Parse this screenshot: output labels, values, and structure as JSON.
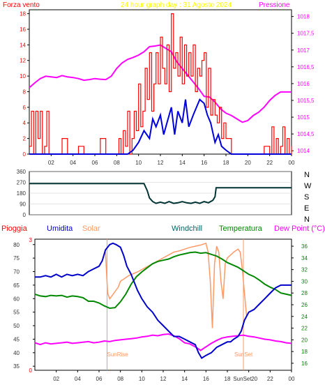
{
  "colors": {
    "wind": "#ff0000",
    "gust_avg": "#0000dd",
    "pressure": "#ff00ff",
    "title": "#ffff00",
    "direction": "#003333",
    "humidity": "#0000cc",
    "solar": "#ff9966",
    "temperature": "#008800",
    "dew_point": "#ff00ff",
    "windchill": "#006666",
    "rain": "#ff0000",
    "grid": "#cccccc",
    "axis": "#000000",
    "tick_text": "#333333"
  },
  "chart_data": [
    {
      "type": "line",
      "title": "24 hour graph day : 31 Agosto 2024",
      "ylabel_left": "Forza vento",
      "ylabel_right": "Pressione",
      "x_ticks": [
        "02",
        "04",
        "06",
        "08",
        "10",
        "12",
        "14",
        "16",
        "18",
        "20",
        "22",
        "00"
      ],
      "y_left_ticks": [
        "0",
        "2",
        "4",
        "6",
        "8",
        "10",
        "12",
        "14",
        "16",
        "18"
      ],
      "y_right_ticks": [
        "1014",
        "1014,5",
        "1015",
        "1015,5",
        "1016",
        "1016,5",
        "1017",
        "1017,5",
        "1018"
      ],
      "ylim_left": [
        0,
        18.5
      ],
      "ylim_right": [
        1013.9,
        1018.2
      ],
      "xlim_hours": [
        0,
        24
      ],
      "series": [
        {
          "key": "pressure",
          "color": "#ff00ff",
          "axis": "right",
          "x": [
            0,
            0.5,
            1,
            1.5,
            2,
            2.5,
            3,
            3.5,
            4,
            4.5,
            5,
            5.5,
            6,
            6.5,
            7,
            7.5,
            8,
            8.5,
            9,
            9.5,
            10,
            10.5,
            11,
            11.5,
            12,
            12.5,
            13,
            13.5,
            14,
            14.5,
            15,
            15.5,
            16,
            16.5,
            17,
            17.5,
            18,
            18.5,
            19,
            19.5,
            20,
            20.5,
            21,
            21.5,
            22,
            22.5,
            23,
            23.5,
            24
          ],
          "y": [
            1015.88,
            1016.02,
            1016.15,
            1016.22,
            1016.2,
            1016.18,
            1016.24,
            1016.2,
            1016.18,
            1016.15,
            1016.1,
            1016.12,
            1016.15,
            1016.13,
            1016.12,
            1016.22,
            1016.45,
            1016.62,
            1016.72,
            1016.78,
            1016.85,
            1016.95,
            1017.1,
            1017.12,
            1017.15,
            1017.05,
            1016.95,
            1016.65,
            1016.45,
            1016.25,
            1016.05,
            1015.85,
            1015.62,
            1015.6,
            1015.45,
            1015.25,
            1015.12,
            1015.05,
            1014.95,
            1014.85,
            1014.9,
            1015.05,
            1015.15,
            1015.3,
            1015.5,
            1015.65,
            1015.75,
            1015.75,
            1015.75
          ]
        },
        {
          "key": "gust",
          "color": "#ff0000",
          "axis": "left",
          "x": [
            0,
            0.2,
            0.4,
            0.6,
            0.8,
            1.0,
            1.2,
            1.4,
            1.6,
            1.8,
            2.0,
            2.5,
            3,
            3.5,
            4,
            4.5,
            5,
            5.5,
            6,
            6.5,
            7,
            7.5,
            8,
            8.2,
            8.4,
            8.6,
            8.8,
            9.0,
            9.2,
            9.4,
            9.6,
            9.8,
            10.0,
            10.2,
            10.4,
            10.6,
            10.8,
            11.0,
            11.2,
            11.4,
            11.6,
            11.8,
            12.0,
            12.2,
            12.4,
            12.6,
            12.8,
            13.0,
            13.2,
            13.4,
            13.6,
            13.8,
            14.0,
            14.2,
            14.4,
            14.6,
            14.8,
            15.0,
            15.2,
            15.4,
            15.6,
            15.8,
            16.0,
            16.2,
            16.4,
            16.6,
            16.8,
            17.0,
            17.2,
            17.4,
            17.6,
            17.8,
            18.0,
            18.5,
            19,
            19.5,
            20,
            20.5,
            21,
            21.5,
            22,
            22.2,
            22.4,
            22.6,
            22.8,
            23.0,
            23.2,
            23.4,
            23.6,
            23.8,
            24
          ],
          "y": [
            1,
            5.5,
            0,
            5.5,
            2,
            5.5,
            0,
            1,
            5.5,
            0,
            0,
            0,
            2,
            0,
            0,
            1,
            0,
            0,
            0,
            2,
            0,
            0,
            0,
            2,
            0,
            3,
            1,
            5.5,
            0,
            2,
            5.5,
            3,
            9,
            3.5,
            5.5,
            11,
            7,
            13,
            5.5,
            9,
            13,
            9,
            15,
            11,
            9,
            14,
            8,
            18,
            11,
            13,
            10,
            15,
            9,
            14,
            10,
            13,
            10,
            14,
            8,
            11,
            10,
            12,
            13,
            6,
            11,
            5,
            7,
            5,
            4,
            6,
            2,
            4,
            2,
            0,
            0,
            0,
            0,
            0,
            0,
            1,
            0,
            3.5,
            0,
            2,
            0,
            1,
            3.5,
            0,
            2,
            0,
            1
          ]
        },
        {
          "key": "wind_avg",
          "color": "#0000dd",
          "axis": "left",
          "x": [
            0,
            1,
            2,
            3,
            4,
            5,
            6,
            7,
            8,
            8.5,
            9,
            9.5,
            10,
            10.5,
            11,
            11.3,
            11.6,
            12,
            12.3,
            12.6,
            13,
            13.3,
            13.6,
            14,
            14.3,
            14.6,
            15,
            15.3,
            15.6,
            16,
            16.3,
            16.6,
            17,
            17.3,
            17.6,
            18,
            18.5,
            19,
            20,
            21,
            22,
            23,
            24
          ],
          "y": [
            0,
            0,
            0,
            0,
            0,
            0,
            0,
            0,
            0,
            0,
            0,
            0.5,
            1.5,
            3,
            2,
            4.5,
            3.5,
            5,
            2.5,
            4,
            6,
            2.5,
            5.5,
            4,
            7,
            3.5,
            5,
            6,
            7,
            6.5,
            5,
            4,
            1.5,
            2.5,
            1,
            0.5,
            0,
            0,
            0,
            0,
            0,
            0,
            0
          ]
        }
      ]
    },
    {
      "type": "line",
      "title": "",
      "y_left_ticks": [
        "0",
        "90",
        "180",
        "270",
        "360"
      ],
      "y_right_labels": [
        "N",
        "W",
        "S",
        "E",
        "N"
      ],
      "ylim": [
        0,
        360
      ],
      "series": [
        {
          "key": "direction",
          "color": "#003333",
          "x": [
            0,
            10.5,
            10.8,
            11.0,
            11.3,
            11.6,
            12,
            12.4,
            12.8,
            13.2,
            13.6,
            14,
            14.4,
            14.8,
            15.2,
            15.6,
            16,
            16.4,
            16.8,
            17.0,
            17.1,
            24
          ],
          "y": [
            260,
            260,
            200,
            140,
            110,
            95,
            105,
            95,
            110,
            95,
            100,
            110,
            100,
            95,
            105,
            95,
            110,
            100,
            120,
            150,
            225,
            225
          ]
        }
      ]
    },
    {
      "type": "line",
      "title": "",
      "legend": [
        "Pioggia",
        "Umidita",
        "Solar",
        "Windchill",
        "Temperatura",
        "Dew Point (°C)"
      ],
      "y_left_ticks": [
        "35",
        "40",
        "45",
        "50",
        "55",
        "60",
        "65",
        "70",
        "75",
        "80"
      ],
      "y_right_ticks": [
        "16",
        "18",
        "20",
        "22",
        "24",
        "26",
        "28",
        "30",
        "32",
        "34",
        "36"
      ],
      "y_rain_ticks": [
        "0",
        "3"
      ],
      "ylim_left": [
        33.5,
        82
      ],
      "ylim_right": [
        14.8,
        37.2
      ],
      "annotations": [
        "SunRise",
        "SunSet"
      ],
      "sunrise_hour": 6.75,
      "sunset_hour": 19.5,
      "x_ticks": [
        "02",
        "04",
        "06",
        "08",
        "10",
        "12",
        "14",
        "16",
        "18",
        "20",
        "22",
        "00"
      ],
      "x_tick_extra": "SunSet",
      "series": [
        {
          "key": "humidity",
          "color": "#0000cc",
          "axis": "left",
          "x": [
            0,
            0.5,
            1,
            1.5,
            2,
            2.5,
            3,
            3.5,
            4,
            4.5,
            5,
            5.5,
            6,
            6.3,
            6.6,
            7,
            7.3,
            7.6,
            8,
            8.3,
            8.6,
            9,
            9.3,
            9.6,
            10,
            10.5,
            11,
            11.5,
            12,
            12.5,
            13,
            13.5,
            14,
            14.5,
            15,
            15.3,
            15.6,
            16,
            16.5,
            17,
            17.5,
            18,
            18.3,
            18.6,
            19,
            19.3,
            19.6,
            20,
            20.5,
            21,
            21.5,
            22,
            22.5,
            23,
            23.5,
            24
          ],
          "y": [
            68,
            68,
            68.5,
            68,
            69,
            68,
            69,
            68.5,
            69,
            68.5,
            70,
            71,
            72,
            74,
            78,
            80,
            80.5,
            80,
            79,
            76,
            72,
            69,
            66,
            63,
            60,
            57,
            55,
            52,
            50,
            48,
            46,
            46,
            45,
            44,
            43,
            40,
            38,
            39,
            40,
            42,
            43,
            44,
            44,
            45,
            46,
            48,
            52,
            55,
            56,
            58,
            60,
            62,
            64,
            65,
            65,
            65
          ]
        },
        {
          "key": "solar",
          "color": "#ff9966",
          "axis": "right",
          "x": [
            0,
            6.6,
            6.8,
            7.0,
            7.2,
            7.4,
            7.6,
            7.8,
            8,
            8.4,
            8.8,
            9.2,
            9.6,
            10,
            10.5,
            11,
            11.5,
            12,
            12.5,
            13,
            13.5,
            14,
            14.5,
            15,
            15.5,
            16,
            16.2,
            16.4,
            16.6,
            16.8,
            17.0,
            17.2,
            17.4,
            17.6,
            17.8,
            18,
            18.3,
            18.6,
            19,
            19.2,
            19.4,
            19.6,
            19.8,
            20,
            24
          ],
          "y": [
            null,
            35,
            28,
            27,
            27.5,
            28,
            28.5,
            29,
            30,
            30.5,
            31,
            31.3,
            31.6,
            32,
            32.5,
            33,
            33.5,
            34,
            34.5,
            35,
            35.2,
            35.5,
            35.8,
            36,
            36.2,
            36.5,
            35,
            30,
            22,
            33,
            36,
            35,
            30,
            27,
            33,
            34,
            34.5,
            35,
            35.5,
            35,
            32,
            28,
            24,
            null,
            null
          ]
        },
        {
          "key": "temperature",
          "color": "#008800",
          "axis": "right",
          "x": [
            0,
            0.5,
            1,
            1.5,
            2,
            2.5,
            3,
            3.5,
            4,
            4.5,
            5,
            5.5,
            6,
            6.5,
            7,
            7.5,
            8,
            8.5,
            9,
            9.5,
            10,
            10.5,
            11,
            11.5,
            12,
            12.5,
            13,
            13.5,
            14,
            14.5,
            15,
            15.5,
            16,
            16.5,
            17,
            17.5,
            18,
            18.5,
            19,
            19.5,
            20,
            20.5,
            21,
            21.5,
            22,
            22.5,
            23,
            23.5,
            24
          ],
          "y": [
            27.8,
            27.5,
            27.4,
            27.6,
            27.5,
            27.6,
            27.3,
            27.5,
            27.4,
            27.2,
            26.6,
            26.6,
            26.3,
            25.8,
            25.4,
            25.5,
            26.5,
            27.8,
            29.5,
            30.8,
            31.6,
            32.3,
            33,
            33.4,
            33.6,
            33.8,
            34.2,
            34.5,
            34.7,
            34.9,
            35,
            34.8,
            34.9,
            34.6,
            34.3,
            33.8,
            33.2,
            32.8,
            32.4,
            31.8,
            31.2,
            30.8,
            30.2,
            29.5,
            29,
            28.6,
            28,
            27.8,
            27.6
          ]
        },
        {
          "key": "dew_point",
          "color": "#ff00ff",
          "axis": "right",
          "x": [
            0,
            0.5,
            1,
            1.5,
            2,
            2.5,
            3,
            3.5,
            4,
            4.5,
            5,
            5.5,
            6,
            6.5,
            7,
            7.5,
            8,
            8.5,
            9,
            9.5,
            10,
            10.5,
            11,
            11.5,
            12,
            12.5,
            13,
            13.5,
            14,
            14.5,
            15,
            15.5,
            16,
            16.5,
            17,
            17.5,
            18,
            18.5,
            19,
            19.5,
            20,
            20.5,
            21,
            21.5,
            22,
            22.5,
            23,
            23.5,
            24
          ],
          "y": [
            19.5,
            19.2,
            19.5,
            19.3,
            19.4,
            19.5,
            19.6,
            19.4,
            19.5,
            19.6,
            19.7,
            19.5,
            19.6,
            19.8,
            19.7,
            19.9,
            20,
            20.1,
            20.2,
            20.3,
            20.5,
            20.6,
            20.8,
            20.7,
            20.9,
            21,
            20.7,
            20.2,
            19.5,
            19.3,
            18.8,
            18.2,
            18.8,
            19.4,
            19.9,
            20.3,
            20.5,
            20.6,
            20.7,
            20.8,
            20.6,
            20.5,
            20.3,
            20.1,
            20,
            19.8,
            19.7,
            19.5,
            19.4
          ]
        },
        {
          "key": "rain",
          "color": "#ff0000",
          "axis": "rain",
          "x": [
            0,
            24
          ],
          "y": [
            0,
            0
          ]
        }
      ]
    }
  ]
}
